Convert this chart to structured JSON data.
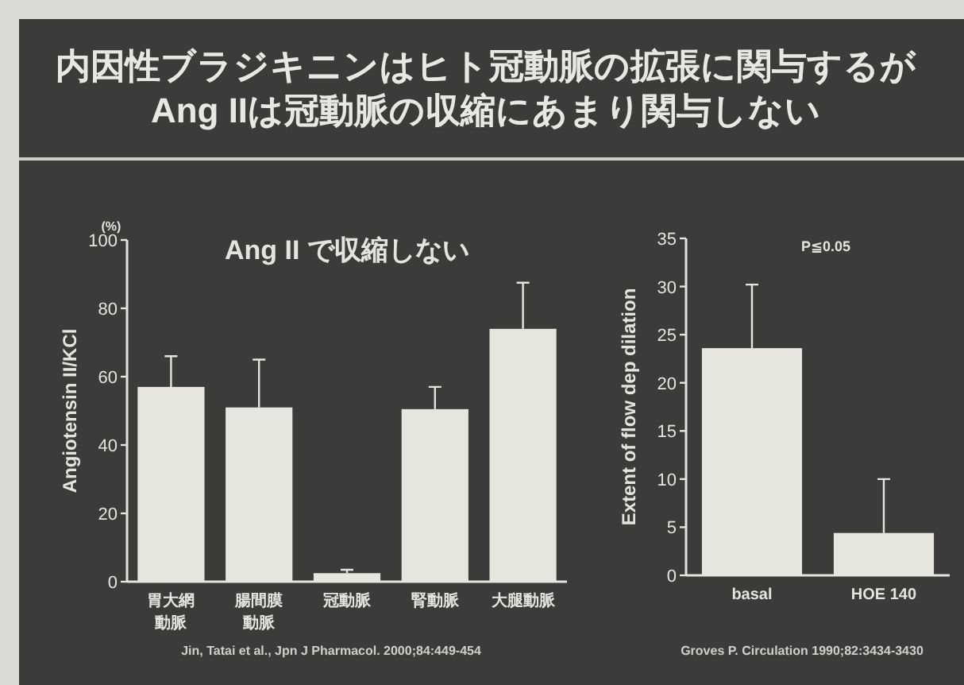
{
  "chart_data": [
    {
      "type": "bar",
      "title": "内因性ブラジキニンはヒト冠動脈の拡張に関与するが Ang IIは冠動脈の収縮にあまり関与しない",
      "subtitle": "Ang II で収縮しない",
      "ylabel": "Angiotensin II/KCl",
      "categories": [
        "胃大網動脈",
        "腸間膜動脈",
        "冠動脈",
        "腎動脈",
        "大腿動脈"
      ],
      "values": [
        57,
        51,
        2.5,
        50.5,
        74
      ],
      "errors": [
        [
          57,
          66
        ],
        [
          51,
          65
        ],
        [
          2.5,
          3.5
        ],
        [
          50.5,
          57
        ],
        [
          74,
          87.5
        ]
      ],
      "color": "#e6e6df",
      "ylim": [
        0,
        100
      ],
      "yticks": [
        0,
        20,
        40,
        60,
        80,
        100
      ],
      "annotations": [
        "(%)",
        "Jin, Tatai et al., Jpn J Pharmacol. 2000;84:449-454"
      ]
    },
    {
      "type": "bar",
      "ylabel": "Extent of flow dep dilation",
      "categories": [
        "basal",
        "HOE 140"
      ],
      "values": [
        23.6,
        4.4
      ],
      "errors": [
        [
          23.6,
          30.2
        ],
        [
          4.4,
          10
        ]
      ],
      "color": "#e6e6df",
      "ylim": [
        0,
        35
      ],
      "yticks": [
        0,
        5,
        10,
        15,
        20,
        25,
        30,
        35
      ],
      "annotations": [
        "P≦0.05",
        "Groves P. Circulation 1990;82:3434-3430"
      ]
    }
  ]
}
